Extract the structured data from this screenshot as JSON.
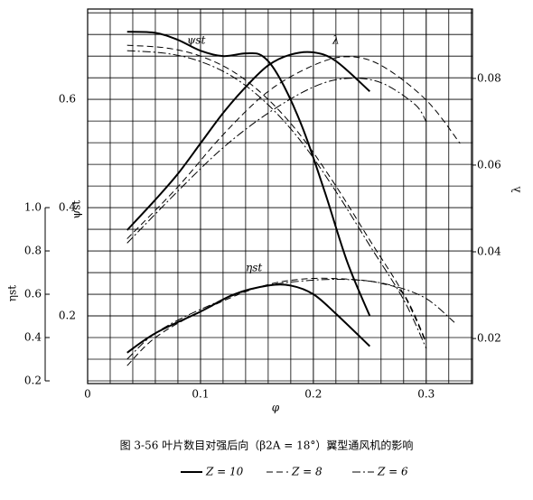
{
  "chart_data": {
    "type": "line",
    "caption": "图 3-56 叶片数目对强后向（β2A = 18°）翼型通风机的影响",
    "xlabel": "φ",
    "ylabel": "ψst",
    "y2label": "λ",
    "y3label": "ηst",
    "curve_labels": {
      "psi_st": "ψst",
      "lambda": "λ",
      "eta_st": "ηst"
    },
    "xlim": [
      0,
      0.341
    ],
    "xticks": [
      0,
      0.1,
      0.2,
      0.3
    ],
    "ylim": [
      0.075,
      0.767
    ],
    "yticks": [
      0.2,
      0.4,
      0.6
    ],
    "y2lim": [
      0.0096,
      0.096
    ],
    "y2ticks": [
      0.02,
      0.04,
      0.06,
      0.08
    ],
    "y3lim": [
      0.1875,
      1.917
    ],
    "y3ticks": [
      0.2,
      0.4,
      0.6,
      0.8,
      {
        "value": 1,
        "label": "1.0"
      }
    ],
    "grid": true,
    "series": [
      {
        "name": "Z = 10",
        "color": "#000000",
        "linestyle": "solid",
        "psi_st": {
          "x": [
            0.035,
            0.06,
            0.08,
            0.1,
            0.12,
            0.14,
            0.155,
            0.17,
            0.19,
            0.21,
            0.23,
            0.25
          ],
          "values": [
            0.725,
            0.723,
            0.71,
            0.69,
            0.68,
            0.685,
            0.68,
            0.64,
            0.55,
            0.43,
            0.3,
            0.2
          ]
        },
        "lambda": {
          "x": [
            0.035,
            0.06,
            0.08,
            0.1,
            0.12,
            0.14,
            0.16,
            0.18,
            0.2,
            0.22,
            0.25
          ],
          "values": [
            0.045,
            0.052,
            0.058,
            0.065,
            0.072,
            0.078,
            0.083,
            0.0855,
            0.086,
            0.084,
            0.077
          ]
        },
        "eta_st": {
          "x": [
            0.035,
            0.06,
            0.1,
            0.13,
            0.16,
            0.18,
            0.2,
            0.22,
            0.25
          ],
          "values": [
            0.33,
            0.42,
            0.52,
            0.6,
            0.64,
            0.64,
            0.6,
            0.51,
            0.36
          ]
        }
      },
      {
        "name": "Z = 8",
        "color": "#000000",
        "linestyle": "dashed",
        "psi_st": {
          "x": [
            0.035,
            0.07,
            0.1,
            0.13,
            0.16,
            0.19,
            0.22,
            0.25,
            0.28,
            0.3
          ],
          "values": [
            0.7,
            0.695,
            0.68,
            0.65,
            0.6,
            0.53,
            0.44,
            0.34,
            0.24,
            0.15
          ]
        },
        "lambda": {
          "x": [
            0.035,
            0.08,
            0.12,
            0.16,
            0.2,
            0.23,
            0.26,
            0.3,
            0.33
          ],
          "values": [
            0.043,
            0.055,
            0.067,
            0.077,
            0.083,
            0.085,
            0.083,
            0.075,
            0.065
          ]
        },
        "eta_st": {
          "x": [
            0.035,
            0.06,
            0.1,
            0.15,
            0.19,
            0.23,
            0.26,
            0.28,
            0.3
          ],
          "values": [
            0.27,
            0.4,
            0.52,
            0.63,
            0.67,
            0.67,
            0.65,
            0.6,
            0.38
          ]
        }
      },
      {
        "name": "Z = 6",
        "color": "#000000",
        "linestyle": "dashdot",
        "psi_st": {
          "x": [
            0.035,
            0.07,
            0.1,
            0.13,
            0.16,
            0.19,
            0.22,
            0.25,
            0.28,
            0.3
          ],
          "values": [
            0.69,
            0.685,
            0.67,
            0.64,
            0.59,
            0.52,
            0.43,
            0.33,
            0.23,
            0.14
          ]
        },
        "lambda": {
          "x": [
            0.035,
            0.08,
            0.12,
            0.16,
            0.2,
            0.23,
            0.26,
            0.29,
            0.3
          ],
          "values": [
            0.042,
            0.054,
            0.064,
            0.072,
            0.078,
            0.08,
            0.079,
            0.074,
            0.07
          ]
        },
        "eta_st": {
          "x": [
            0.035,
            0.06,
            0.1,
            0.15,
            0.2,
            0.24,
            0.27,
            0.3,
            0.325
          ],
          "values": [
            0.3,
            0.42,
            0.53,
            0.63,
            0.665,
            0.665,
            0.64,
            0.58,
            0.47
          ]
        }
      }
    ]
  }
}
